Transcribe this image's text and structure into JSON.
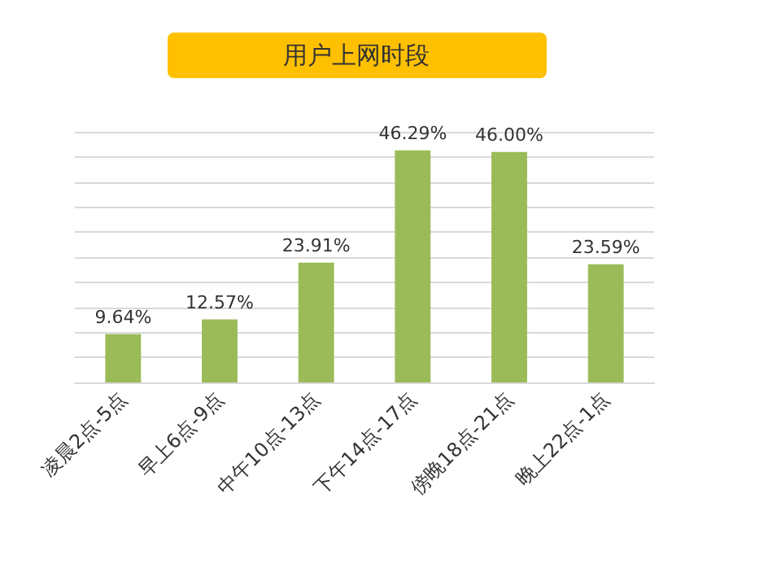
{
  "chart_data": {
    "type": "bar",
    "title": "用户上网时段",
    "categories": [
      "凌晨2点-5点",
      "早上6点-9点",
      "中午10点-13点",
      "下午14点-17点",
      "傍晚18点-21点",
      "晚上22点-1点"
    ],
    "values": [
      9.64,
      12.57,
      23.91,
      46.29,
      46.0,
      23.59
    ],
    "value_labels": [
      "9.64%",
      "12.57%",
      "23.91%",
      "46.29%",
      "46.00%",
      "23.59%"
    ],
    "color": "#9bbb59",
    "ylim": [
      0,
      50
    ],
    "yticks": [
      {
        "value": 0,
        "label": null
      },
      {
        "value": 5,
        "label": null
      },
      {
        "value": 10,
        "label": null
      },
      {
        "value": 15,
        "label": null
      },
      {
        "value": 20,
        "label": null
      },
      {
        "value": 25,
        "label": null
      },
      {
        "value": 30,
        "label": null
      },
      {
        "value": 35,
        "label": null
      },
      {
        "value": 40,
        "label": null
      },
      {
        "value": 45,
        "label": null
      },
      {
        "value": 50,
        "label": null
      }
    ],
    "grid": "y",
    "tick_labels": "x"
  }
}
